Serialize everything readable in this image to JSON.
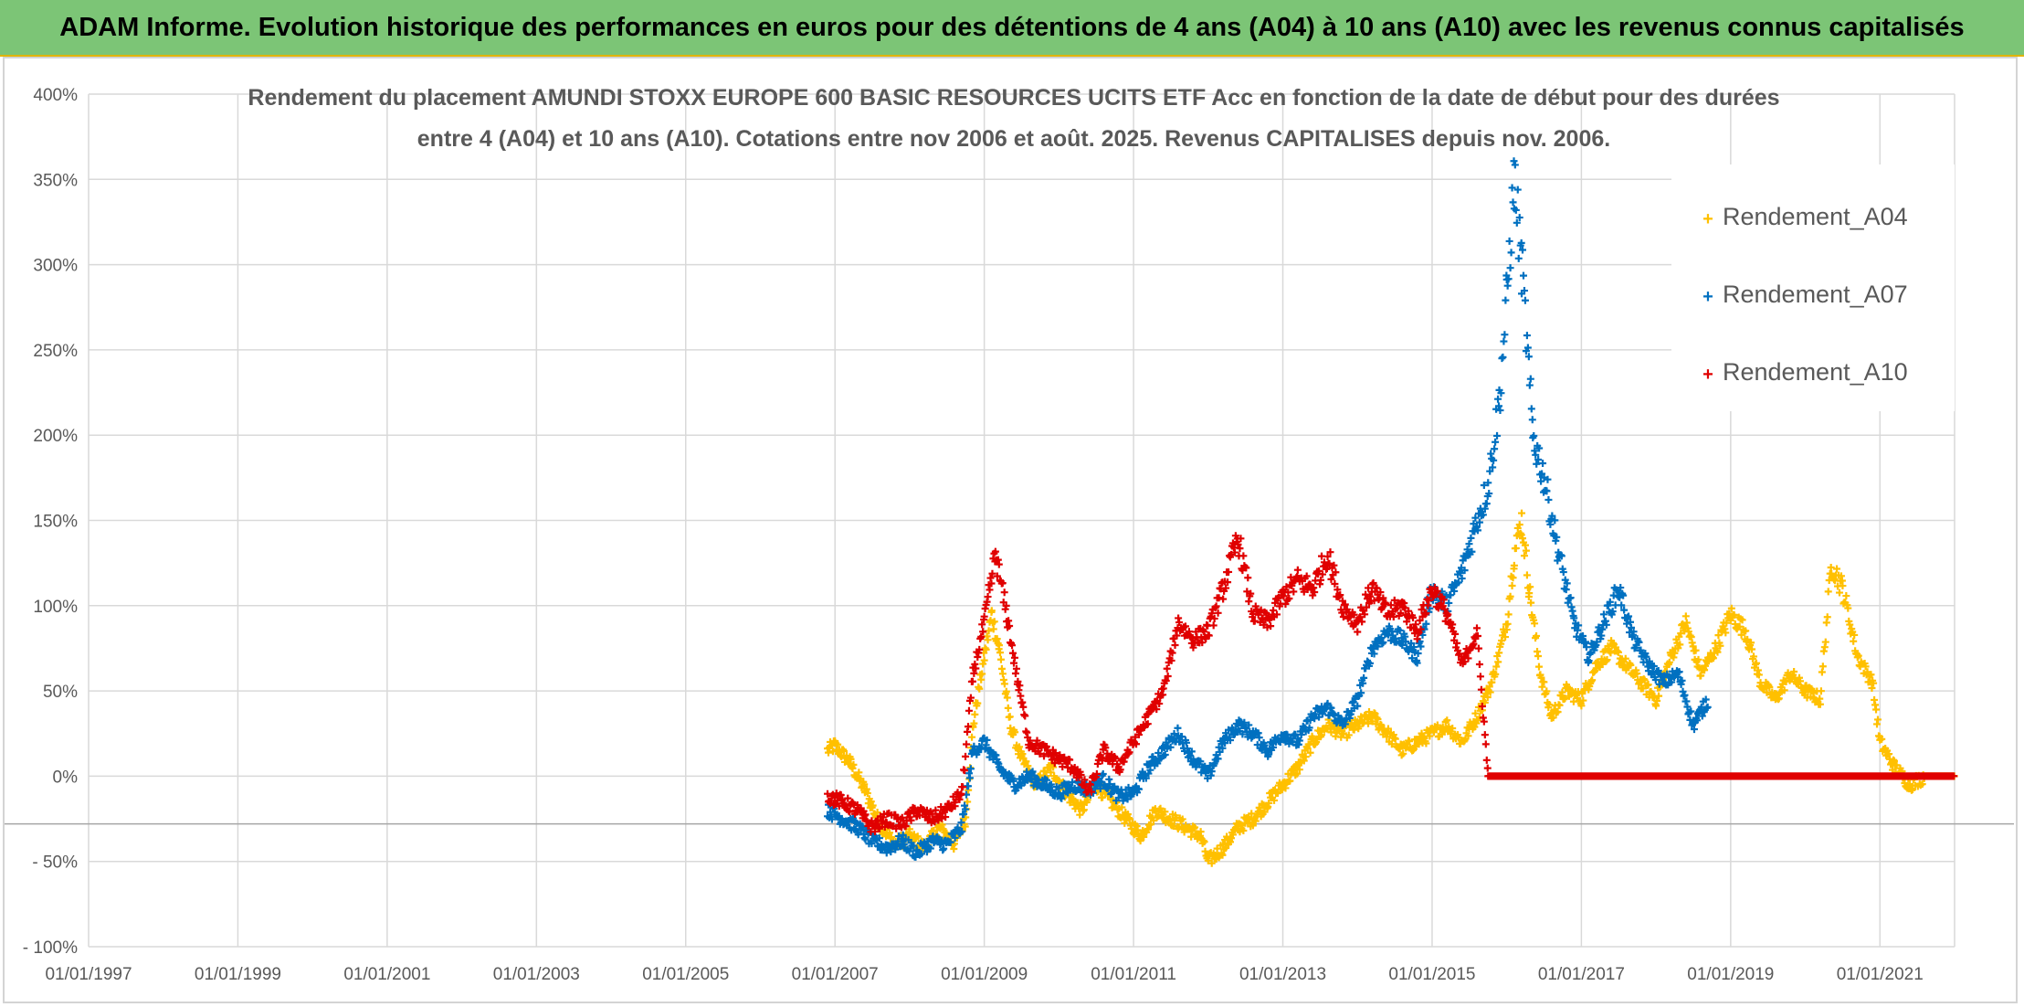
{
  "banner": {
    "title": "ADAM Informe. Evolution historique des performances en euros pour des détentions de 4 ans (A04) à 10 ans (A10) avec les revenus connus capitalisés"
  },
  "colors": {
    "A04": "#ffc000",
    "A07": "#0070c0",
    "A10": "#e00000",
    "banner": "#7cc576",
    "grid": "#d9d9d9"
  },
  "chart_data": {
    "type": "scatter",
    "title_lines": [
      "Rendement du placement AMUNDI STOXX EUROPE 600 BASIC RESOURCES UCITS ETF Acc en fonction de la date de début pour des durées",
      "entre 4 (A04) et 10 ans (A10). Cotations entre nov 2006 et août. 2025. Revenus CAPITALISES depuis nov. 2006."
    ],
    "x_tick_labels": [
      "01/01/1997",
      "01/01/1999",
      "01/01/2001",
      "01/01/2003",
      "01/01/2005",
      "01/01/2007",
      "01/01/2009",
      "01/01/2011",
      "01/01/2013",
      "01/01/2015",
      "01/01/2017",
      "01/01/2019",
      "01/01/2021"
    ],
    "xlim": [
      1997.0,
      2022.0
    ],
    "y_tick_labels": [
      "400%",
      "350%",
      "300%",
      "250%",
      "200%",
      "150%",
      "100%",
      "50%",
      "0%",
      "- 50%",
      "- 100%"
    ],
    "ylim": [
      -100,
      400
    ],
    "legend_position": "top-right",
    "series": [
      {
        "name": "Rendement_A04",
        "key": "A04",
        "points": [
          [
            2006.9,
            15
          ],
          [
            2007.0,
            18
          ],
          [
            2007.2,
            8
          ],
          [
            2007.4,
            -8
          ],
          [
            2007.6,
            -28
          ],
          [
            2007.8,
            -40
          ],
          [
            2008.0,
            -35
          ],
          [
            2008.2,
            -42
          ],
          [
            2008.4,
            -30
          ],
          [
            2008.6,
            -40
          ],
          [
            2008.75,
            -25
          ],
          [
            2008.85,
            30
          ],
          [
            2009.0,
            70
          ],
          [
            2009.1,
            95
          ],
          [
            2009.2,
            75
          ],
          [
            2009.35,
            30
          ],
          [
            2009.5,
            10
          ],
          [
            2009.7,
            -5
          ],
          [
            2009.9,
            5
          ],
          [
            2010.1,
            -10
          ],
          [
            2010.3,
            -20
          ],
          [
            2010.5,
            -5
          ],
          [
            2010.7,
            -15
          ],
          [
            2010.9,
            -25
          ],
          [
            2011.1,
            -35
          ],
          [
            2011.3,
            -20
          ],
          [
            2011.5,
            -25
          ],
          [
            2011.7,
            -30
          ],
          [
            2011.9,
            -35
          ],
          [
            2012.0,
            -50
          ],
          [
            2012.2,
            -42
          ],
          [
            2012.4,
            -30
          ],
          [
            2012.6,
            -25
          ],
          [
            2012.8,
            -15
          ],
          [
            2013.0,
            -5
          ],
          [
            2013.2,
            5
          ],
          [
            2013.4,
            20
          ],
          [
            2013.6,
            30
          ],
          [
            2013.8,
            25
          ],
          [
            2014.0,
            30
          ],
          [
            2014.2,
            35
          ],
          [
            2014.4,
            25
          ],
          [
            2014.6,
            15
          ],
          [
            2014.8,
            20
          ],
          [
            2015.0,
            25
          ],
          [
            2015.2,
            30
          ],
          [
            2015.4,
            20
          ],
          [
            2015.6,
            35
          ],
          [
            2015.8,
            55
          ],
          [
            2016.0,
            90
          ],
          [
            2016.1,
            130
          ],
          [
            2016.2,
            150
          ],
          [
            2016.3,
            110
          ],
          [
            2016.45,
            60
          ],
          [
            2016.6,
            35
          ],
          [
            2016.8,
            50
          ],
          [
            2017.0,
            45
          ],
          [
            2017.2,
            65
          ],
          [
            2017.4,
            75
          ],
          [
            2017.6,
            65
          ],
          [
            2017.8,
            55
          ],
          [
            2018.0,
            45
          ],
          [
            2018.2,
            70
          ],
          [
            2018.4,
            90
          ],
          [
            2018.6,
            60
          ],
          [
            2018.8,
            75
          ],
          [
            2019.0,
            95
          ],
          [
            2019.2,
            85
          ],
          [
            2019.4,
            55
          ],
          [
            2019.6,
            45
          ],
          [
            2019.8,
            60
          ],
          [
            2020.0,
            50
          ],
          [
            2020.2,
            45
          ],
          [
            2020.35,
            125
          ],
          [
            2020.5,
            110
          ],
          [
            2020.7,
            70
          ],
          [
            2020.9,
            55
          ],
          [
            2021.0,
            20
          ],
          [
            2021.2,
            5
          ],
          [
            2021.4,
            -5
          ],
          [
            2021.6,
            0
          ],
          [
            2022.0,
            0
          ]
        ]
      },
      {
        "name": "Rendement_A07",
        "key": "A07",
        "points": [
          [
            2006.9,
            -20
          ],
          [
            2007.1,
            -25
          ],
          [
            2007.3,
            -30
          ],
          [
            2007.5,
            -38
          ],
          [
            2007.7,
            -42
          ],
          [
            2007.9,
            -38
          ],
          [
            2008.1,
            -45
          ],
          [
            2008.3,
            -38
          ],
          [
            2008.5,
            -40
          ],
          [
            2008.7,
            -30
          ],
          [
            2008.85,
            15
          ],
          [
            2009.0,
            20
          ],
          [
            2009.2,
            5
          ],
          [
            2009.4,
            -5
          ],
          [
            2009.6,
            0
          ],
          [
            2009.8,
            -5
          ],
          [
            2010.0,
            -10
          ],
          [
            2010.2,
            -5
          ],
          [
            2010.4,
            -8
          ],
          [
            2010.6,
            -2
          ],
          [
            2010.8,
            -12
          ],
          [
            2011.0,
            -10
          ],
          [
            2011.2,
            5
          ],
          [
            2011.4,
            15
          ],
          [
            2011.6,
            25
          ],
          [
            2011.8,
            10
          ],
          [
            2012.0,
            0
          ],
          [
            2012.2,
            20
          ],
          [
            2012.4,
            30
          ],
          [
            2012.6,
            25
          ],
          [
            2012.8,
            15
          ],
          [
            2013.0,
            25
          ],
          [
            2013.2,
            20
          ],
          [
            2013.4,
            35
          ],
          [
            2013.6,
            40
          ],
          [
            2013.8,
            30
          ],
          [
            2014.0,
            45
          ],
          [
            2014.2,
            75
          ],
          [
            2014.4,
            85
          ],
          [
            2014.6,
            80
          ],
          [
            2014.8,
            70
          ],
          [
            2015.0,
            110
          ],
          [
            2015.2,
            100
          ],
          [
            2015.4,
            120
          ],
          [
            2015.6,
            150
          ],
          [
            2015.75,
            170
          ],
          [
            2015.9,
            220
          ],
          [
            2016.0,
            280
          ],
          [
            2016.1,
            350
          ],
          [
            2016.2,
            300
          ],
          [
            2016.35,
            200
          ],
          [
            2016.5,
            175
          ],
          [
            2016.7,
            130
          ],
          [
            2016.9,
            90
          ],
          [
            2017.1,
            70
          ],
          [
            2017.3,
            90
          ],
          [
            2017.5,
            110
          ],
          [
            2017.7,
            80
          ],
          [
            2017.9,
            65
          ],
          [
            2018.1,
            55
          ],
          [
            2018.3,
            60
          ],
          [
            2018.5,
            30
          ],
          [
            2018.7,
            45
          ]
        ]
      },
      {
        "name": "Rendement_A10",
        "key": "A10",
        "points": [
          [
            2006.9,
            -12
          ],
          [
            2007.1,
            -15
          ],
          [
            2007.3,
            -20
          ],
          [
            2007.5,
            -30
          ],
          [
            2007.7,
            -25
          ],
          [
            2007.9,
            -28
          ],
          [
            2008.1,
            -20
          ],
          [
            2008.3,
            -25
          ],
          [
            2008.5,
            -20
          ],
          [
            2008.7,
            -10
          ],
          [
            2008.85,
            60
          ],
          [
            2009.0,
            90
          ],
          [
            2009.15,
            130
          ],
          [
            2009.3,
            95
          ],
          [
            2009.45,
            55
          ],
          [
            2009.6,
            20
          ],
          [
            2009.8,
            15
          ],
          [
            2010.0,
            10
          ],
          [
            2010.2,
            5
          ],
          [
            2010.4,
            -10
          ],
          [
            2010.6,
            15
          ],
          [
            2010.8,
            5
          ],
          [
            2011.0,
            20
          ],
          [
            2011.2,
            35
          ],
          [
            2011.4,
            50
          ],
          [
            2011.6,
            90
          ],
          [
            2011.8,
            80
          ],
          [
            2012.0,
            85
          ],
          [
            2012.2,
            110
          ],
          [
            2012.4,
            140
          ],
          [
            2012.6,
            95
          ],
          [
            2012.8,
            90
          ],
          [
            2013.0,
            105
          ],
          [
            2013.2,
            115
          ],
          [
            2013.4,
            110
          ],
          [
            2013.6,
            130
          ],
          [
            2013.8,
            100
          ],
          [
            2014.0,
            90
          ],
          [
            2014.2,
            110
          ],
          [
            2014.4,
            95
          ],
          [
            2014.6,
            100
          ],
          [
            2014.8,
            85
          ],
          [
            2015.0,
            110
          ],
          [
            2015.2,
            95
          ],
          [
            2015.4,
            65
          ],
          [
            2015.6,
            85
          ],
          [
            2015.75,
            0
          ],
          [
            2022.0,
            0
          ]
        ]
      }
    ]
  }
}
